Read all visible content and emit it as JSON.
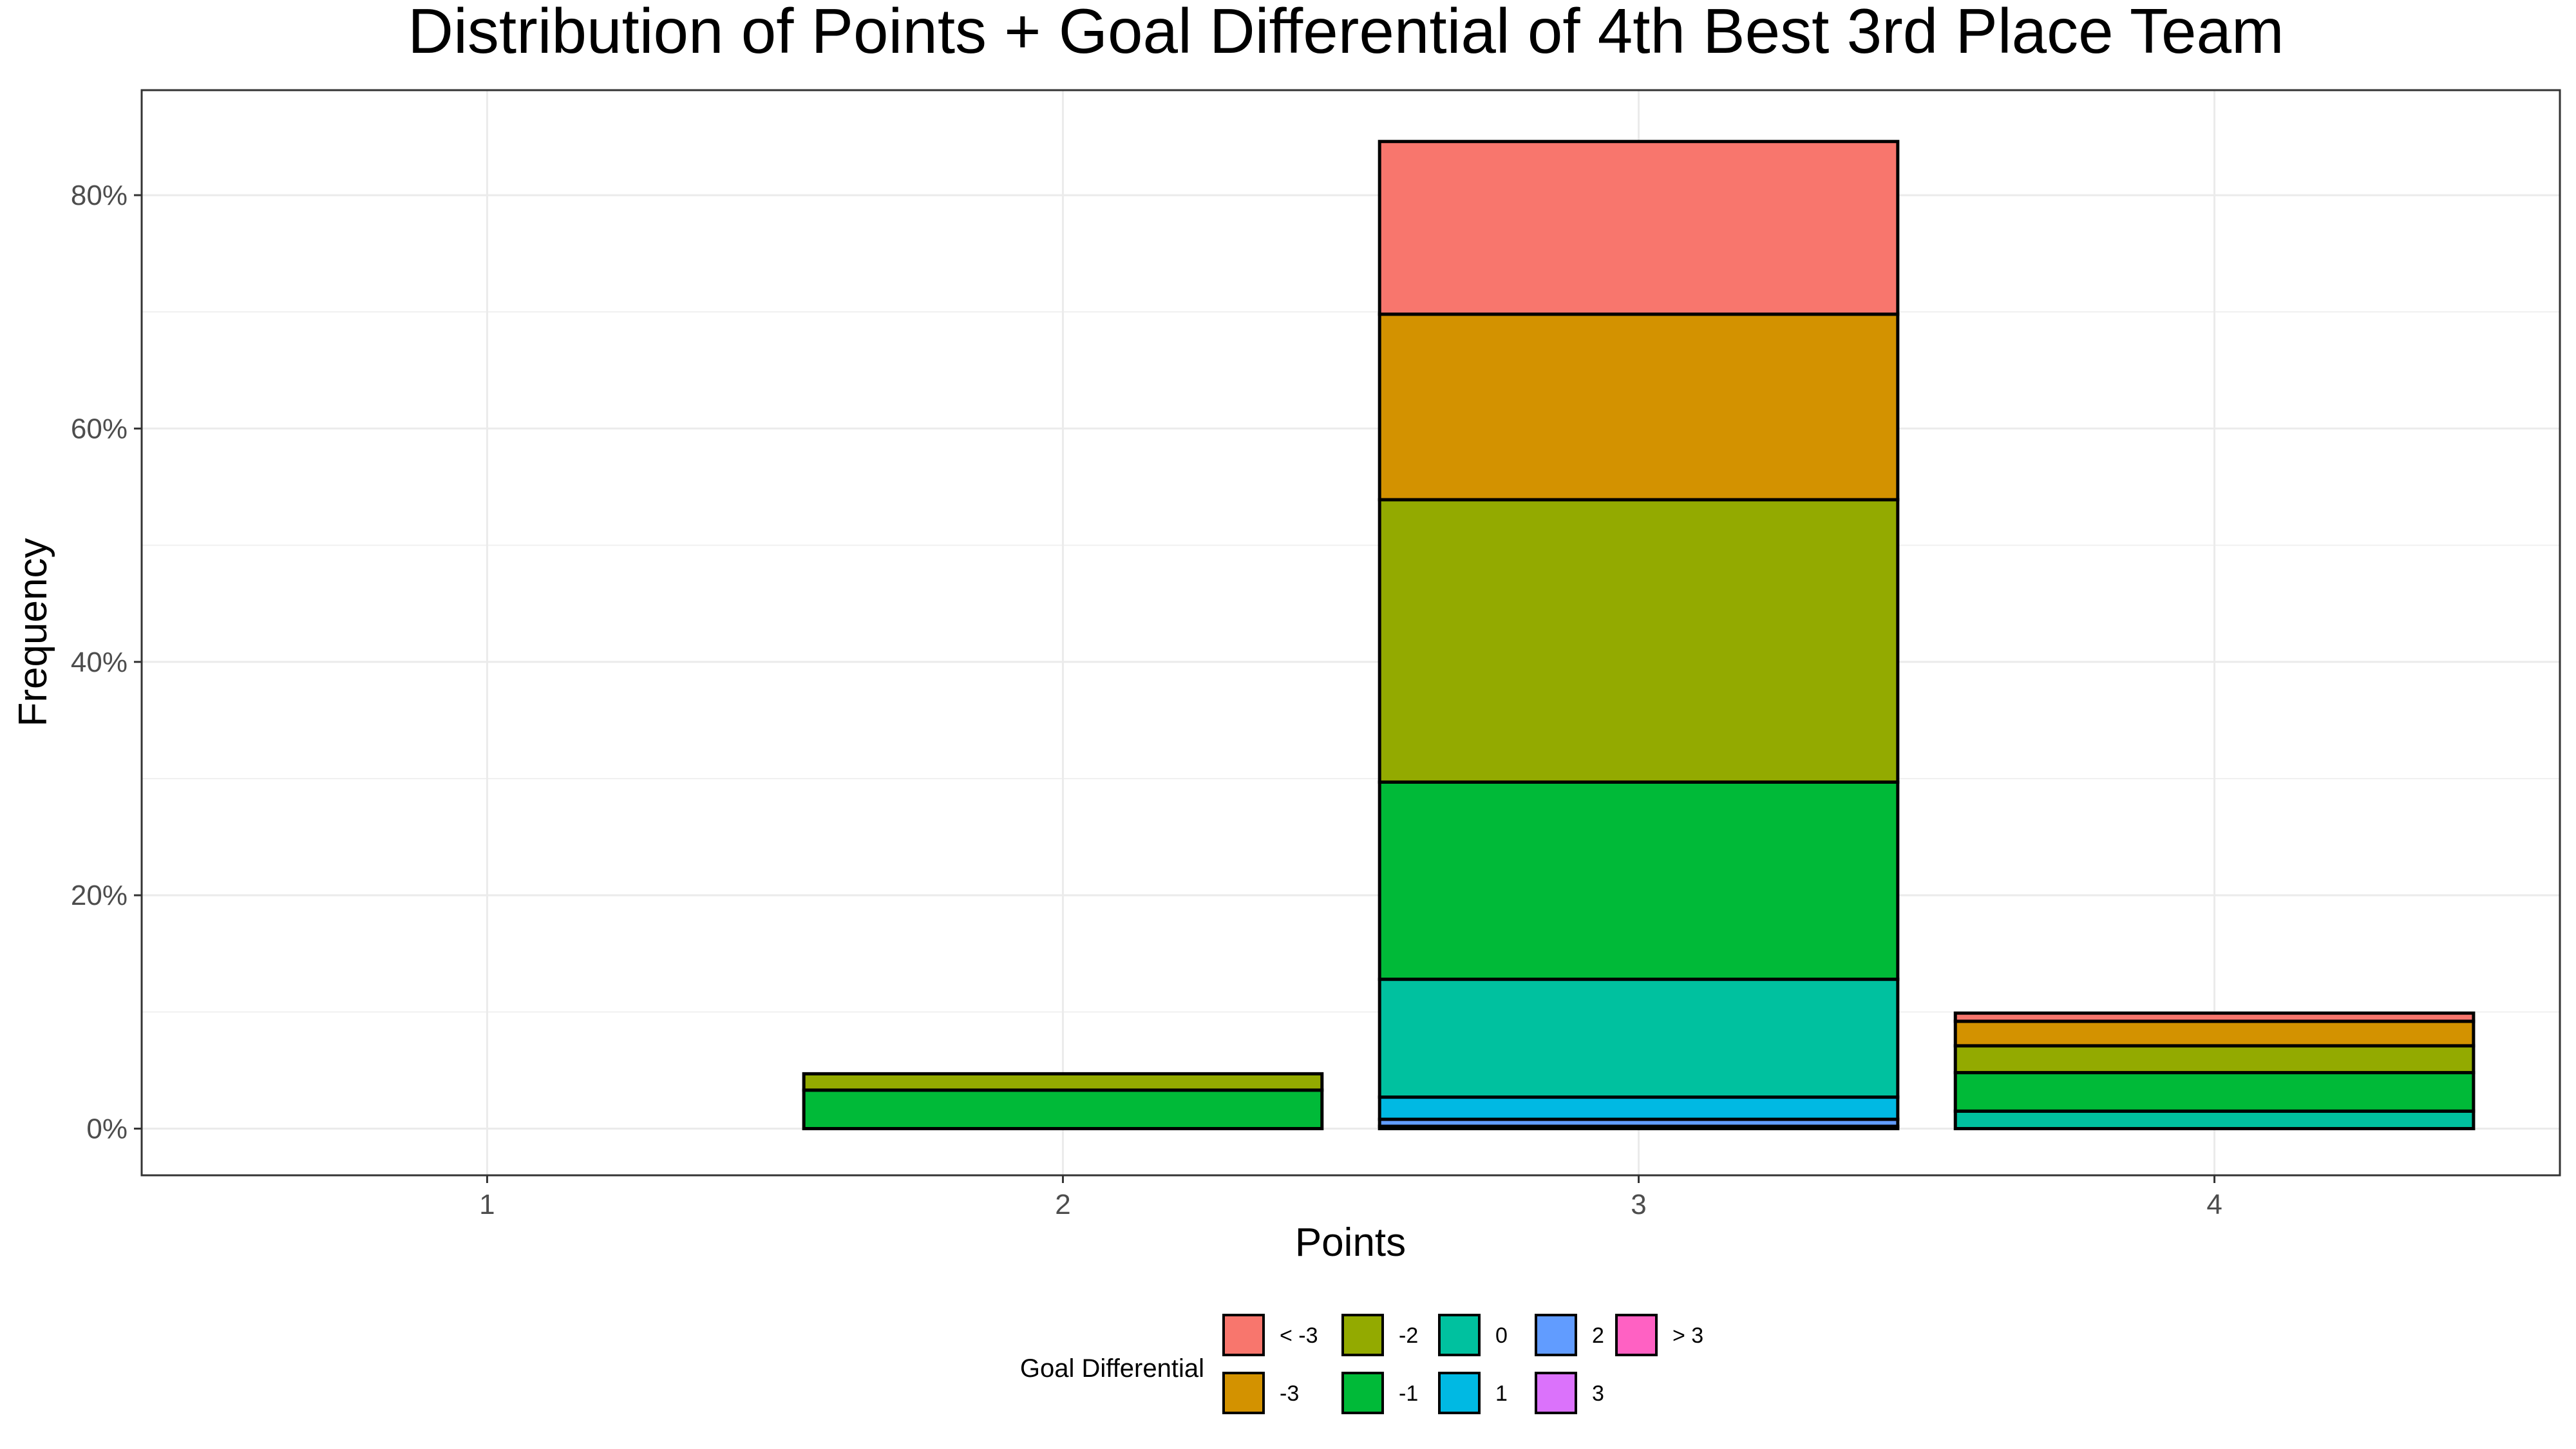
{
  "chart_data": {
    "type": "bar",
    "stacked": true,
    "title": "Distribution of Points + Goal Differential of 4th Best 3rd Place Team",
    "xlabel": "Points",
    "ylabel": "Frequency",
    "categories": [
      "1",
      "2",
      "3",
      "4"
    ],
    "ylim": [
      -0.04,
      0.89
    ],
    "yticks": [
      0,
      0.2,
      0.4,
      0.6,
      0.8
    ],
    "ytick_labels": [
      "0%",
      "20%",
      "40%",
      "60%",
      "80%"
    ],
    "grid": true,
    "legend": {
      "title": "Goal Differential",
      "position": "bottom"
    },
    "series": [
      {
        "name": "< -3",
        "color": "#F8766D",
        "values": [
          0.0,
          0.0,
          0.148,
          0.007
        ]
      },
      {
        "name": "-3",
        "color": "#D39200",
        "values": [
          0.0,
          0.0,
          0.159,
          0.021
        ]
      },
      {
        "name": "-2",
        "color": "#93AA00",
        "values": [
          0.0,
          0.014,
          0.242,
          0.023
        ]
      },
      {
        "name": "-1",
        "color": "#00BA38",
        "values": [
          0.0,
          0.033,
          0.169,
          0.033
        ]
      },
      {
        "name": "0",
        "color": "#00C19F",
        "values": [
          0.0,
          0.0,
          0.101,
          0.015
        ]
      },
      {
        "name": "1",
        "color": "#00B9E3",
        "values": [
          0.0,
          0.0,
          0.019,
          0.0
        ]
      },
      {
        "name": "2",
        "color": "#619CFF",
        "values": [
          0.0,
          0.0,
          0.006,
          0.0
        ]
      },
      {
        "name": "3",
        "color": "#DB72FB",
        "values": [
          0.0,
          0.0,
          0.002,
          0.0
        ]
      },
      {
        "name": "> 3",
        "color": "#FF61C3",
        "values": [
          0.0,
          0.0,
          0.0,
          0.0
        ]
      }
    ]
  }
}
